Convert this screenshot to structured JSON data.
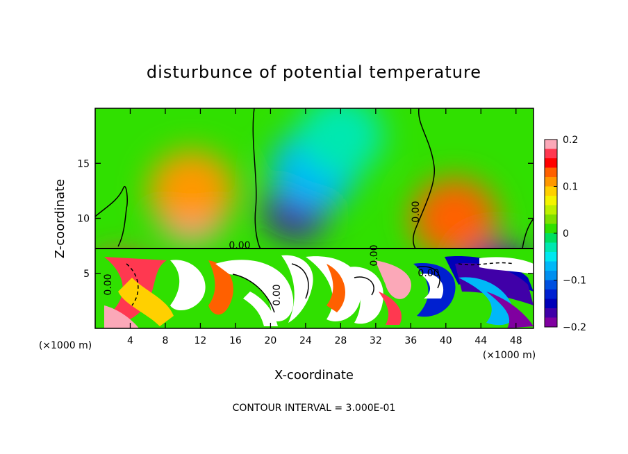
{
  "chart_data": {
    "type": "heatmap",
    "title": "disturbunce of potential temperature",
    "xlabel": "X-coordinate",
    "ylabel": "Z-coordinate",
    "x_unit": "(×1000 m)",
    "z_unit": "(×1000 m)",
    "xlim": [
      0,
      50
    ],
    "ylim": [
      0,
      20
    ],
    "x_ticks": [
      4,
      8,
      12,
      16,
      20,
      24,
      28,
      32,
      36,
      40,
      44,
      48
    ],
    "y_ticks": [
      5,
      10,
      15
    ],
    "colorbar": {
      "range": [
        -0.2,
        0.2
      ],
      "ticks": [
        "0.2",
        "0.1",
        "0",
        "−0.1",
        "−0.2"
      ],
      "colors": [
        "#fba8b8",
        "#ff3850",
        "#ff0000",
        "#ff6000",
        "#ff9800",
        "#ffd000",
        "#f4f400",
        "#bef000",
        "#7ee000",
        "#30e000",
        "#00e060",
        "#00e8b0",
        "#00e8f0",
        "#00b8f8",
        "#0090f0",
        "#0050e0",
        "#0020d0",
        "#0000b8",
        "#4000a8",
        "#8000a0"
      ]
    },
    "contour_labels": [
      "0.00",
      "0.00",
      "0.00",
      "0.00",
      "0.00",
      "0.00"
    ],
    "interval_note": "CONTOUR INTERVAL = 3.000E-01",
    "anomalies": [
      {
        "x": 11,
        "z": 10.5,
        "value": 0.19
      },
      {
        "x": 11,
        "z": 12.5,
        "value": 0.12
      },
      {
        "x": 23,
        "z": 10.8,
        "value": -0.17
      },
      {
        "x": 25,
        "z": 14.5,
        "value": -0.08
      },
      {
        "x": 41,
        "z": 10.0,
        "value": 0.13
      },
      {
        "x": 28,
        "z": 17.5,
        "value": -0.03
      },
      {
        "x": 46,
        "z": 5.0,
        "value": -0.18
      },
      {
        "x": 3,
        "z": 4.0,
        "value": 0.18
      }
    ]
  }
}
